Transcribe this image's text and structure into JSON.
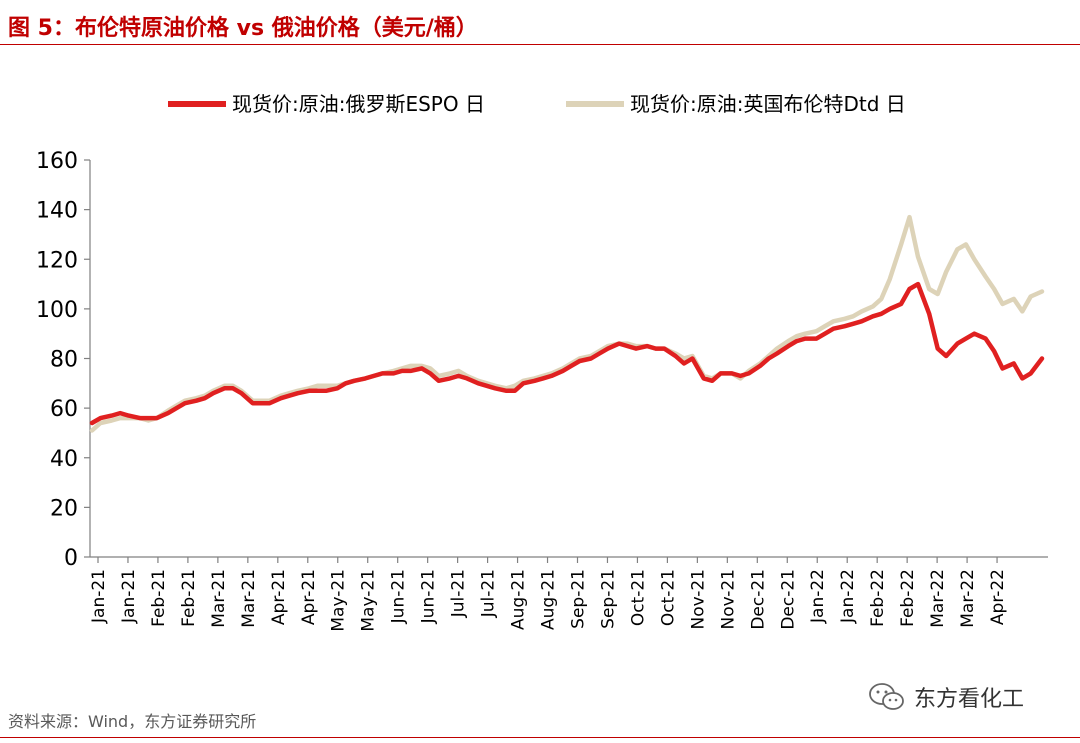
{
  "header": {
    "figure_title": "图 5：布伦特原油价格 vs 俄油价格（美元/桶）"
  },
  "footer": {
    "source": "资料来源：Wind，东方证券研究所",
    "watermark": "东方看化工",
    "watermark_icon": "wechat-icon"
  },
  "colors": {
    "accent": "#c00000",
    "espo": "#e02020",
    "brent": "#ddd3b8",
    "axis": "#808080",
    "grid": "#d9d9d9"
  },
  "chart_data": {
    "type": "line",
    "title": "",
    "xlabel": "",
    "ylabel": "",
    "ylim": [
      0,
      160
    ],
    "yticks": [
      0,
      20,
      40,
      60,
      80,
      100,
      120,
      140,
      160
    ],
    "grid": false,
    "legend_position": "top",
    "x_tick_labels": [
      "Jan-21",
      "Jan-21",
      "Feb-21",
      "Feb-21",
      "Mar-21",
      "Mar-21",
      "Apr-21",
      "Apr-21",
      "May-21",
      "May-21",
      "Jun-21",
      "Jun-21",
      "Jul-21",
      "Jul-21",
      "Aug-21",
      "Aug-21",
      "Sep-21",
      "Sep-21",
      "Oct-21",
      "Oct-21",
      "Nov-21",
      "Nov-21",
      "Dec-21",
      "Dec-21",
      "Jan-22",
      "Jan-22",
      "Feb-22",
      "Feb-22",
      "Mar-22",
      "Mar-22",
      "Apr-22"
    ],
    "x_label_ranges": [
      "Jan-21 ~ Apr-22"
    ],
    "series": [
      {
        "name": "现货价:原油:俄罗斯ESPO 日",
        "color": "#e02020",
        "points": [
          [
            0,
            54
          ],
          [
            0.3,
            56
          ],
          [
            0.7,
            57
          ],
          [
            1,
            58
          ],
          [
            1.3,
            57
          ],
          [
            1.7,
            56
          ],
          [
            2,
            56
          ],
          [
            2.3,
            56
          ],
          [
            2.7,
            58
          ],
          [
            3,
            60
          ],
          [
            3.3,
            62
          ],
          [
            3.7,
            63
          ],
          [
            4,
            64
          ],
          [
            4.3,
            66
          ],
          [
            4.7,
            68
          ],
          [
            5,
            68
          ],
          [
            5.3,
            66
          ],
          [
            5.7,
            62
          ],
          [
            6,
            62
          ],
          [
            6.3,
            62
          ],
          [
            6.7,
            64
          ],
          [
            7,
            65
          ],
          [
            7.3,
            66
          ],
          [
            7.7,
            67
          ],
          [
            8,
            67
          ],
          [
            8.3,
            67
          ],
          [
            8.7,
            68
          ],
          [
            9,
            70
          ],
          [
            9.3,
            71
          ],
          [
            9.7,
            72
          ],
          [
            10,
            73
          ],
          [
            10.3,
            74
          ],
          [
            10.7,
            74
          ],
          [
            11,
            75
          ],
          [
            11.3,
            75
          ],
          [
            11.7,
            76
          ],
          [
            12,
            74
          ],
          [
            12.3,
            71
          ],
          [
            12.7,
            72
          ],
          [
            13,
            73
          ],
          [
            13.3,
            72
          ],
          [
            13.7,
            70
          ],
          [
            14,
            69
          ],
          [
            14.3,
            68
          ],
          [
            14.7,
            67
          ],
          [
            15,
            67
          ],
          [
            15.3,
            70
          ],
          [
            15.7,
            71
          ],
          [
            16,
            72
          ],
          [
            16.3,
            73
          ],
          [
            16.7,
            75
          ],
          [
            17,
            77
          ],
          [
            17.3,
            79
          ],
          [
            17.7,
            80
          ],
          [
            18,
            82
          ],
          [
            18.3,
            84
          ],
          [
            18.7,
            86
          ],
          [
            19,
            85
          ],
          [
            19.3,
            84
          ],
          [
            19.7,
            85
          ],
          [
            20,
            84
          ],
          [
            20.3,
            84
          ],
          [
            20.7,
            81
          ],
          [
            21,
            78
          ],
          [
            21.3,
            80
          ],
          [
            21.7,
            72
          ],
          [
            22,
            71
          ],
          [
            22.3,
            74
          ],
          [
            22.7,
            74
          ],
          [
            23,
            73
          ],
          [
            23.3,
            74
          ],
          [
            23.7,
            77
          ],
          [
            24,
            80
          ],
          [
            24.3,
            82
          ],
          [
            24.7,
            85
          ],
          [
            25,
            87
          ],
          [
            25.3,
            88
          ],
          [
            25.7,
            88
          ],
          [
            26,
            90
          ],
          [
            26.3,
            92
          ],
          [
            26.7,
            93
          ],
          [
            27,
            94
          ],
          [
            27.3,
            95
          ],
          [
            27.7,
            97
          ],
          [
            28,
            98
          ],
          [
            28.3,
            100
          ],
          [
            28.7,
            102
          ],
          [
            29,
            108
          ],
          [
            29.3,
            110
          ],
          [
            29.7,
            98
          ],
          [
            30,
            84
          ],
          [
            30.3,
            81
          ],
          [
            30.7,
            86
          ],
          [
            31,
            88
          ],
          [
            31.3,
            90
          ],
          [
            31.7,
            88
          ],
          [
            32,
            83
          ],
          [
            32.3,
            76
          ],
          [
            32.7,
            78
          ],
          [
            33,
            72
          ],
          [
            33.3,
            74
          ],
          [
            33.7,
            80
          ]
        ]
      },
      {
        "name": "现货价:原油:英国布伦特Dtd 日",
        "color": "#ddd3b8",
        "points": [
          [
            0,
            51
          ],
          [
            0.3,
            54
          ],
          [
            0.7,
            55
          ],
          [
            1,
            56
          ],
          [
            1.3,
            56
          ],
          [
            1.7,
            56
          ],
          [
            2,
            55
          ],
          [
            2.3,
            56
          ],
          [
            2.7,
            59
          ],
          [
            3,
            61
          ],
          [
            3.3,
            63
          ],
          [
            3.7,
            64
          ],
          [
            4,
            65
          ],
          [
            4.3,
            67
          ],
          [
            4.7,
            69
          ],
          [
            5,
            69
          ],
          [
            5.3,
            67
          ],
          [
            5.7,
            63
          ],
          [
            6,
            63
          ],
          [
            6.3,
            63
          ],
          [
            6.7,
            65
          ],
          [
            7,
            66
          ],
          [
            7.3,
            67
          ],
          [
            7.7,
            68
          ],
          [
            8,
            69
          ],
          [
            8.3,
            69
          ],
          [
            8.7,
            69
          ],
          [
            9,
            70
          ],
          [
            9.3,
            71
          ],
          [
            9.7,
            72
          ],
          [
            10,
            73
          ],
          [
            10.3,
            74
          ],
          [
            10.7,
            75
          ],
          [
            11,
            76
          ],
          [
            11.3,
            77
          ],
          [
            11.7,
            77
          ],
          [
            12,
            76
          ],
          [
            12.3,
            73
          ],
          [
            12.7,
            74
          ],
          [
            13,
            75
          ],
          [
            13.3,
            73
          ],
          [
            13.7,
            71
          ],
          [
            14,
            70
          ],
          [
            14.3,
            69
          ],
          [
            14.7,
            68
          ],
          [
            15,
            69
          ],
          [
            15.3,
            71
          ],
          [
            15.7,
            72
          ],
          [
            16,
            73
          ],
          [
            16.3,
            74
          ],
          [
            16.7,
            76
          ],
          [
            17,
            78
          ],
          [
            17.3,
            80
          ],
          [
            17.7,
            81
          ],
          [
            18,
            83
          ],
          [
            18.3,
            85
          ],
          [
            18.7,
            86
          ],
          [
            19,
            86
          ],
          [
            19.3,
            85
          ],
          [
            19.7,
            85
          ],
          [
            20,
            84
          ],
          [
            20.3,
            84
          ],
          [
            20.7,
            82
          ],
          [
            21,
            80
          ],
          [
            21.3,
            81
          ],
          [
            21.7,
            73
          ],
          [
            22,
            72
          ],
          [
            22.3,
            74
          ],
          [
            22.7,
            74
          ],
          [
            23,
            72
          ],
          [
            23.3,
            75
          ],
          [
            23.7,
            78
          ],
          [
            24,
            81
          ],
          [
            24.3,
            84
          ],
          [
            24.7,
            87
          ],
          [
            25,
            89
          ],
          [
            25.3,
            90
          ],
          [
            25.7,
            91
          ],
          [
            26,
            93
          ],
          [
            26.3,
            95
          ],
          [
            26.7,
            96
          ],
          [
            27,
            97
          ],
          [
            27.3,
            99
          ],
          [
            27.7,
            101
          ],
          [
            28,
            104
          ],
          [
            28.3,
            112
          ],
          [
            28.7,
            126
          ],
          [
            29,
            137
          ],
          [
            29.3,
            121
          ],
          [
            29.7,
            108
          ],
          [
            30,
            106
          ],
          [
            30.3,
            115
          ],
          [
            30.7,
            124
          ],
          [
            31,
            126
          ],
          [
            31.3,
            120
          ],
          [
            31.7,
            113
          ],
          [
            32,
            108
          ],
          [
            32.3,
            102
          ],
          [
            32.7,
            104
          ],
          [
            33,
            99
          ],
          [
            33.3,
            105
          ],
          [
            33.7,
            107
          ]
        ]
      }
    ]
  }
}
